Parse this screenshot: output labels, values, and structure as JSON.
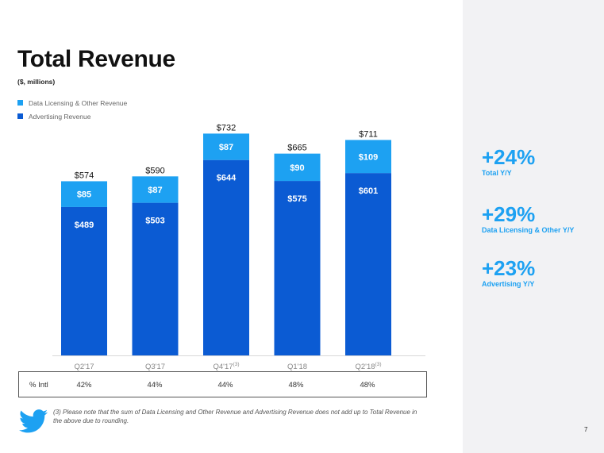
{
  "title": "Total Revenue",
  "subtitle": "($, millions)",
  "colors": {
    "data_licensing": "#1da1f2",
    "advertising": "#0b5bd3",
    "accent": "#1da1f2",
    "panel": "#f2f2f4"
  },
  "chart_data": {
    "type": "bar",
    "stacked": true,
    "categories": [
      "Q2'17",
      "Q3'17",
      "Q4'17",
      "Q1'18",
      "Q2'18"
    ],
    "category_superscripts": [
      "",
      "",
      "(3)",
      "",
      "(3)"
    ],
    "series": [
      {
        "name": "Advertising Revenue",
        "values": [
          489,
          503,
          644,
          575,
          601
        ],
        "labels": [
          "$489",
          "$503",
          "$644",
          "$575",
          "$601"
        ],
        "color": "#0b5bd3"
      },
      {
        "name": "Data Licensing & Other Revenue",
        "values": [
          85,
          87,
          87,
          90,
          109
        ],
        "labels": [
          "$85",
          "$87",
          "$87",
          "$90",
          "$109"
        ],
        "color": "#1da1f2"
      }
    ],
    "totals": [
      574,
      590,
      732,
      665,
      711
    ],
    "total_labels": [
      "$574",
      "$590",
      "$732",
      "$665",
      "$711"
    ],
    "ylim": [
      0,
      800
    ],
    "legend_position": "top-left",
    "grid": false
  },
  "legend": [
    {
      "label": "Data Licensing & Other Revenue",
      "color": "#1da1f2"
    },
    {
      "label": "Advertising Revenue",
      "color": "#0b5bd3"
    }
  ],
  "intl": {
    "label": "% Intl",
    "values": [
      "42%",
      "44%",
      "44%",
      "48%",
      "48%"
    ]
  },
  "stats": [
    {
      "value": "+24%",
      "label": "Total Y/Y"
    },
    {
      "value": "+29%",
      "label": "Data Licensing & Other Y/Y"
    },
    {
      "value": "+23%",
      "label": "Advertising Y/Y"
    }
  ],
  "footnote": "(3) Please note that the sum of Data Licensing and Other Revenue and Advertising Revenue does not add up to Total Revenue in the above due to rounding.",
  "page_number": "7",
  "logo": "twitter-bird-icon"
}
